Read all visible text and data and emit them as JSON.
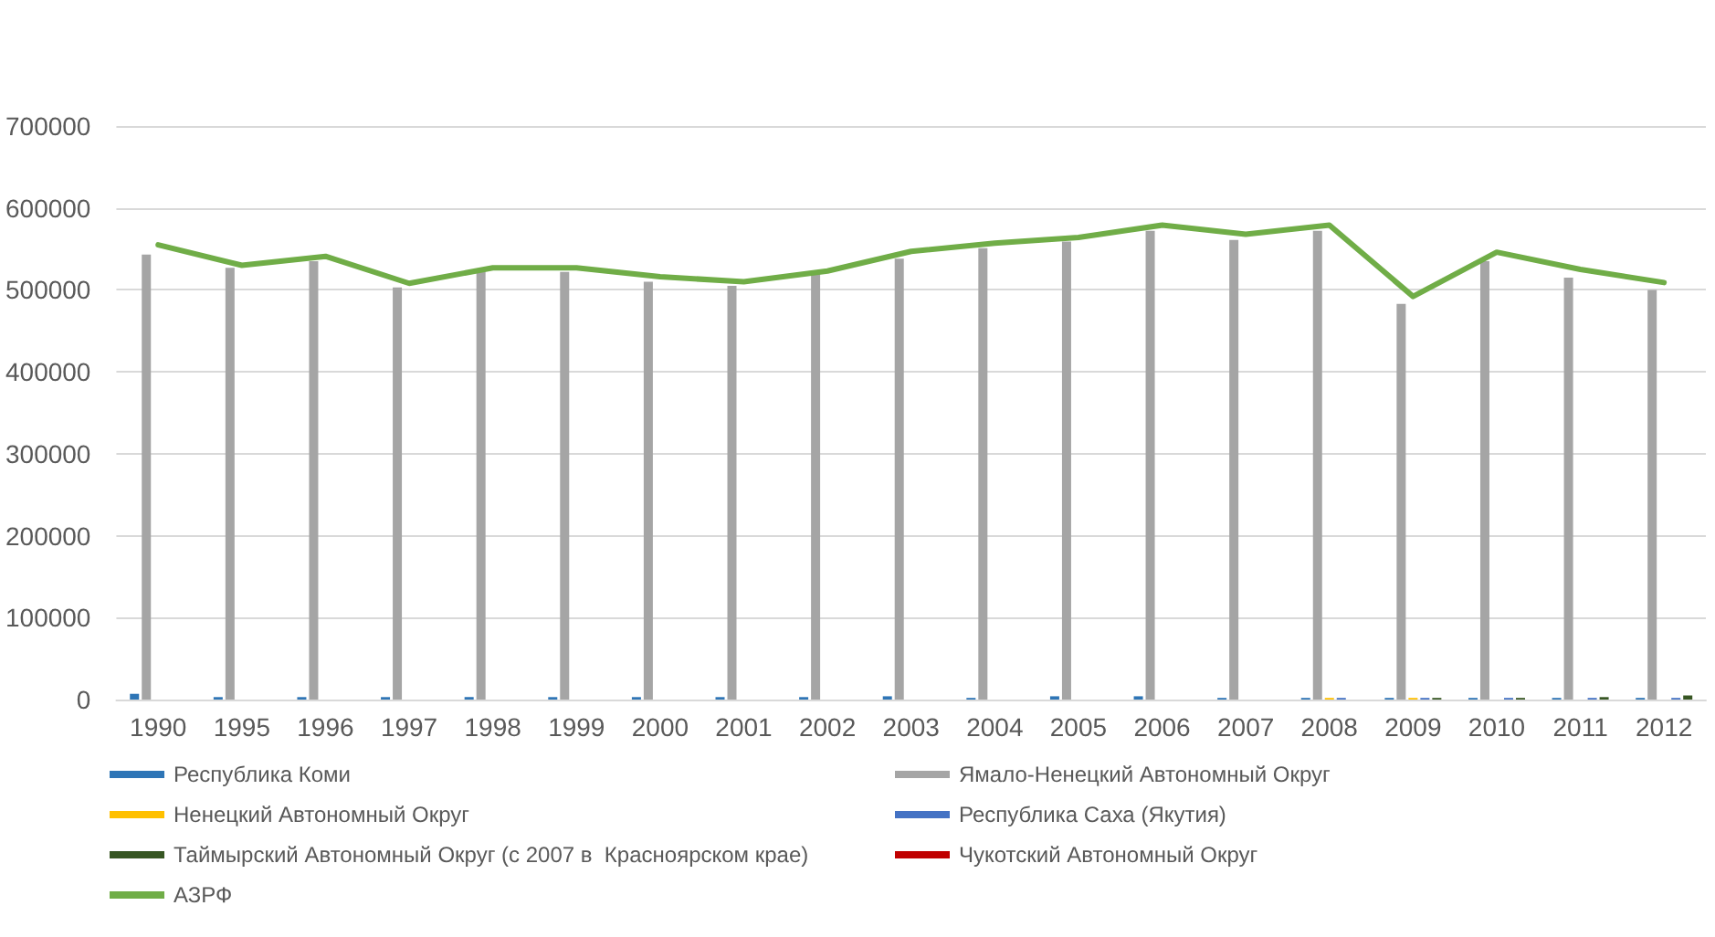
{
  "chart_data": {
    "type": "bar",
    "categories": [
      "1990",
      "1995",
      "1996",
      "1997",
      "1998",
      "1999",
      "2000",
      "2001",
      "2002",
      "2003",
      "2004",
      "2005",
      "2006",
      "2007",
      "2008",
      "2009",
      "2010",
      "2011",
      "2012"
    ],
    "series": [
      {
        "name": "Республика Коми",
        "color": "#2e75b6",
        "values": [
          7000,
          3000,
          3000,
          3000,
          3000,
          3000,
          3000,
          3000,
          3000,
          4000,
          2000,
          4000,
          4000,
          2000,
          2000,
          2000,
          2000,
          2000,
          2000
        ]
      },
      {
        "name": "Ямало-Ненецкий Автономный Округ",
        "color": "#a5a5a5",
        "values": [
          543000,
          527000,
          535000,
          503000,
          523000,
          522000,
          510000,
          505000,
          520000,
          538000,
          551000,
          559000,
          572000,
          561000,
          572000,
          483000,
          535000,
          515000,
          500000
        ]
      },
      {
        "name": "Ненецкий Автономный Округ",
        "color": "#ffc000",
        "values": [
          null,
          null,
          null,
          null,
          null,
          null,
          null,
          null,
          null,
          null,
          null,
          null,
          null,
          null,
          2000,
          2000,
          null,
          null,
          null
        ]
      },
      {
        "name": "Республика Саха (Якутия)",
        "color": "#4472c4",
        "values": [
          null,
          null,
          null,
          null,
          null,
          null,
          null,
          null,
          null,
          null,
          null,
          null,
          null,
          null,
          2000,
          2000,
          2000,
          2000,
          2000
        ]
      },
      {
        "name": "Таймырский Автономный Округ (с 2007 в  Красноярском крае)",
        "color": "#375623",
        "values": [
          null,
          null,
          null,
          null,
          null,
          null,
          null,
          null,
          null,
          null,
          null,
          null,
          null,
          null,
          null,
          2000,
          2000,
          3000,
          5000
        ]
      },
      {
        "name": "Чукотский Автономный Округ",
        "type": "line",
        "color": "#c00000",
        "values": [
          null,
          null,
          null,
          null,
          null,
          null,
          null,
          null,
          null,
          null,
          null,
          null,
          null,
          null,
          null,
          null,
          null,
          null,
          null
        ]
      },
      {
        "name": "АЗРФ",
        "type": "line",
        "color": "#70ad47",
        "values": [
          555000,
          530000,
          541000,
          508000,
          527000,
          527000,
          516000,
          510000,
          523000,
          547000,
          557000,
          564000,
          579000,
          568000,
          579000,
          492000,
          546000,
          525000,
          509000
        ]
      }
    ],
    "ylim": [
      0,
      700000
    ],
    "yticks": [
      0,
      100000,
      200000,
      300000,
      400000,
      500000,
      600000,
      700000
    ],
    "grid": "y",
    "legend": "bottom",
    "marker": "none"
  }
}
